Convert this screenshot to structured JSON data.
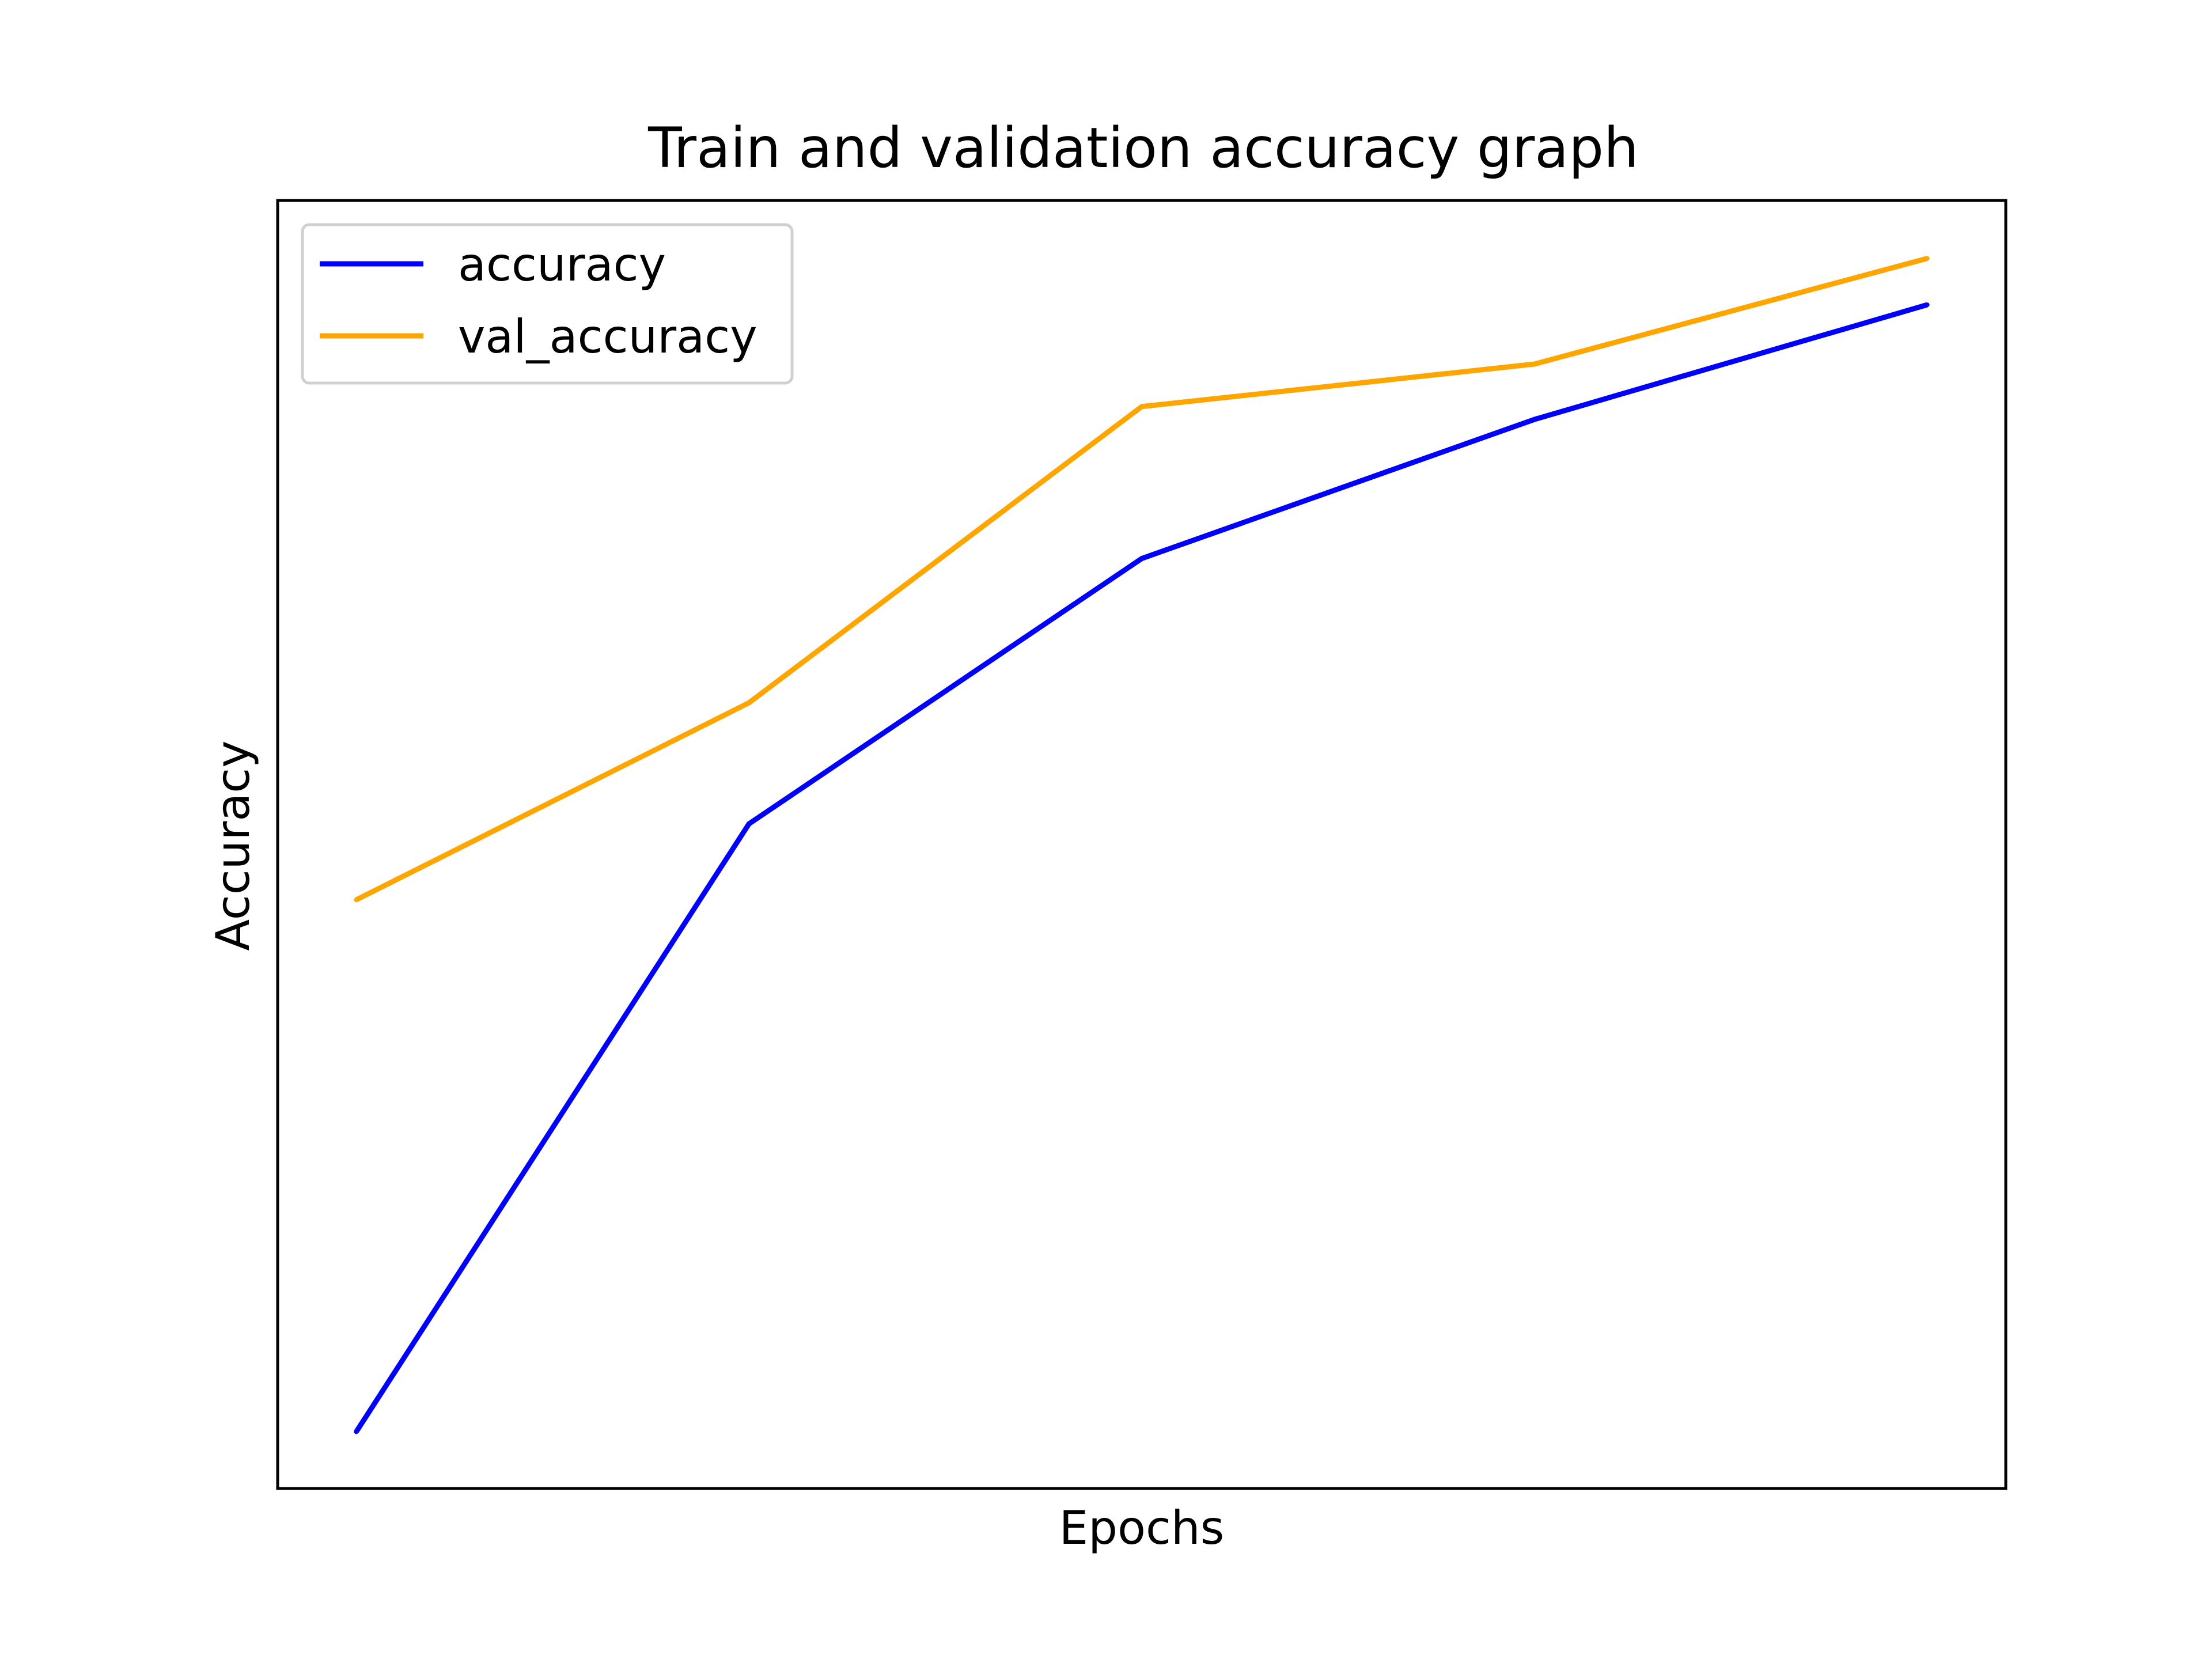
{
  "chart_data": {
    "type": "line",
    "title": "Train and validation accuracy graph",
    "xlabel": "Epochs",
    "ylabel": "Accuracy",
    "x": [
      1,
      2,
      3,
      4,
      5
    ],
    "xlim": [
      0.8,
      5.2
    ],
    "ylim": [
      0.0,
      1.0
    ],
    "grid": false,
    "ticks_visible": false,
    "legend": {
      "location": "upper-left",
      "entries": [
        "accuracy",
        "val_accuracy"
      ]
    },
    "series": [
      {
        "name": "accuracy",
        "color": "#0000ff",
        "values": [
          0.044,
          0.516,
          0.722,
          0.83,
          0.919
        ]
      },
      {
        "name": "val_accuracy",
        "color": "#ffa500",
        "values": [
          0.457,
          0.61,
          0.84,
          0.873,
          0.955
        ]
      }
    ]
  }
}
